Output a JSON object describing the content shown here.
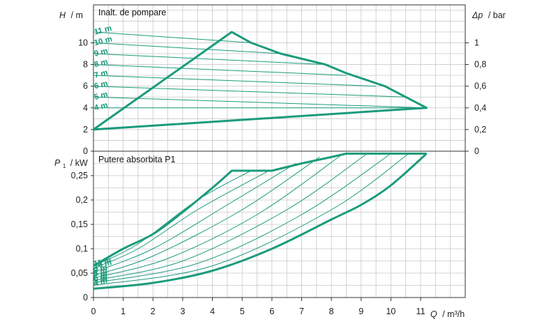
{
  "chart_data": [
    {
      "type": "line",
      "title": "Inalt. de pompare",
      "ylabel_left_sym": "H",
      "ylabel_left_unit": "/ m",
      "ylabel_right_sym": "Δp",
      "ylabel_right_unit": "/ bar",
      "xlim": [
        0,
        12.5
      ],
      "ylim": [
        0,
        13.5
      ],
      "y_ticks": [
        "0",
        "2",
        "4",
        "6",
        "8",
        "10"
      ],
      "y_right_ticks": [
        "0",
        "0,2",
        "0,4",
        "0,6",
        "0,8",
        "1"
      ],
      "grid": true,
      "envelope": [
        [
          0,
          2
        ],
        [
          4.65,
          11
        ],
        [
          5.3,
          10
        ],
        [
          6.3,
          9
        ],
        [
          7.8,
          8
        ],
        [
          8.5,
          7.2
        ],
        [
          9.8,
          6
        ],
        [
          11.2,
          4
        ],
        [
          0,
          2
        ]
      ],
      "series": [
        {
          "name": "11 m",
          "values": [
            [
              0,
              11
            ],
            [
              5.3,
              10
            ]
          ]
        },
        {
          "name": "10 m",
          "values": [
            [
              0,
              10
            ],
            [
              6.3,
              9
            ]
          ]
        },
        {
          "name": "9 m",
          "values": [
            [
              0,
              9
            ],
            [
              7.8,
              8
            ]
          ]
        },
        {
          "name": "8 m",
          "values": [
            [
              0,
              8
            ],
            [
              8.5,
              7
            ]
          ]
        },
        {
          "name": "7 m",
          "values": [
            [
              0,
              7
            ],
            [
              9.5,
              6
            ]
          ]
        },
        {
          "name": "6 m",
          "values": [
            [
              0,
              6
            ],
            [
              10.5,
              5
            ]
          ]
        },
        {
          "name": "5 m",
          "values": [
            [
              0,
              5
            ],
            [
              11.2,
              4
            ]
          ]
        },
        {
          "name": "4 m",
          "values": [
            [
              0,
              4
            ],
            [
              11.2,
              4
            ]
          ]
        }
      ]
    },
    {
      "type": "line",
      "title": "Putere absorbita P1",
      "ylabel_sym": "P",
      "ylabel_sub": "1",
      "ylabel_unit": "/ kW",
      "xlabel_sym": "Q",
      "xlabel_unit": "/ m³/h",
      "x_ticks": [
        "0",
        "1",
        "2",
        "3",
        "4",
        "5",
        "6",
        "7",
        "8",
        "9",
        "10",
        "11"
      ],
      "xlim": [
        0,
        12.5
      ],
      "ylim": [
        0,
        0.3
      ],
      "y_ticks": [
        "0",
        "0,05",
        "0,1",
        "0,15",
        "0,2",
        "0,25"
      ],
      "grid": true,
      "upper_boundary": [
        [
          0,
          0.065
        ],
        [
          1.0,
          0.1
        ],
        [
          2.0,
          0.13
        ],
        [
          3.0,
          0.175
        ],
        [
          4.0,
          0.225
        ],
        [
          4.65,
          0.26
        ],
        [
          6.0,
          0.26
        ],
        [
          7.0,
          0.275
        ],
        [
          8.0,
          0.288
        ],
        [
          8.5,
          0.295
        ],
        [
          11.2,
          0.295
        ]
      ],
      "lower_boundary": [
        [
          0,
          0.018
        ],
        [
          2.0,
          0.03
        ],
        [
          4.0,
          0.055
        ],
        [
          6.0,
          0.1
        ],
        [
          8.0,
          0.16
        ],
        [
          9.0,
          0.19
        ],
        [
          10.0,
          0.23
        ],
        [
          11.2,
          0.295
        ]
      ],
      "series": [
        {
          "name": "11 m",
          "values": [
            [
              0,
              0.065
            ],
            [
              1.5,
              0.11
            ],
            [
              3.5,
              0.2
            ],
            [
              5.3,
              0.26
            ]
          ]
        },
        {
          "name": "10 m",
          "values": [
            [
              0,
              0.06
            ],
            [
              1.5,
              0.1
            ],
            [
              3.5,
              0.18
            ],
            [
              5.9,
              0.26
            ]
          ]
        },
        {
          "name": "9 m",
          "values": [
            [
              0,
              0.052
            ],
            [
              2.0,
              0.1
            ],
            [
              4.5,
              0.19
            ],
            [
              6.8,
              0.275
            ]
          ]
        },
        {
          "name": "8 m",
          "values": [
            [
              0,
              0.045
            ],
            [
              2.0,
              0.085
            ],
            [
              5.0,
              0.18
            ],
            [
              7.6,
              0.288
            ]
          ]
        },
        {
          "name": "7 m",
          "values": [
            [
              0,
              0.04
            ],
            [
              2.5,
              0.08
            ],
            [
              5.5,
              0.17
            ],
            [
              8.4,
              0.295
            ]
          ]
        },
        {
          "name": "6 m",
          "values": [
            [
              0,
              0.035
            ],
            [
              3.0,
              0.075
            ],
            [
              6.5,
              0.18
            ],
            [
              9.2,
              0.295
            ]
          ]
        },
        {
          "name": "5 m",
          "values": [
            [
              0,
              0.03
            ],
            [
              3.5,
              0.07
            ],
            [
              7.0,
              0.17
            ],
            [
              10.0,
              0.295
            ]
          ]
        },
        {
          "name": "4 m",
          "values": [
            [
              0,
              0.025
            ],
            [
              4.0,
              0.065
            ],
            [
              8.0,
              0.18
            ],
            [
              10.6,
              0.295
            ]
          ]
        }
      ]
    }
  ],
  "colors": {
    "curve": "#1a9b7c",
    "grid": "#c8c8c8",
    "axis": "#333333",
    "background": "#ffffff"
  }
}
